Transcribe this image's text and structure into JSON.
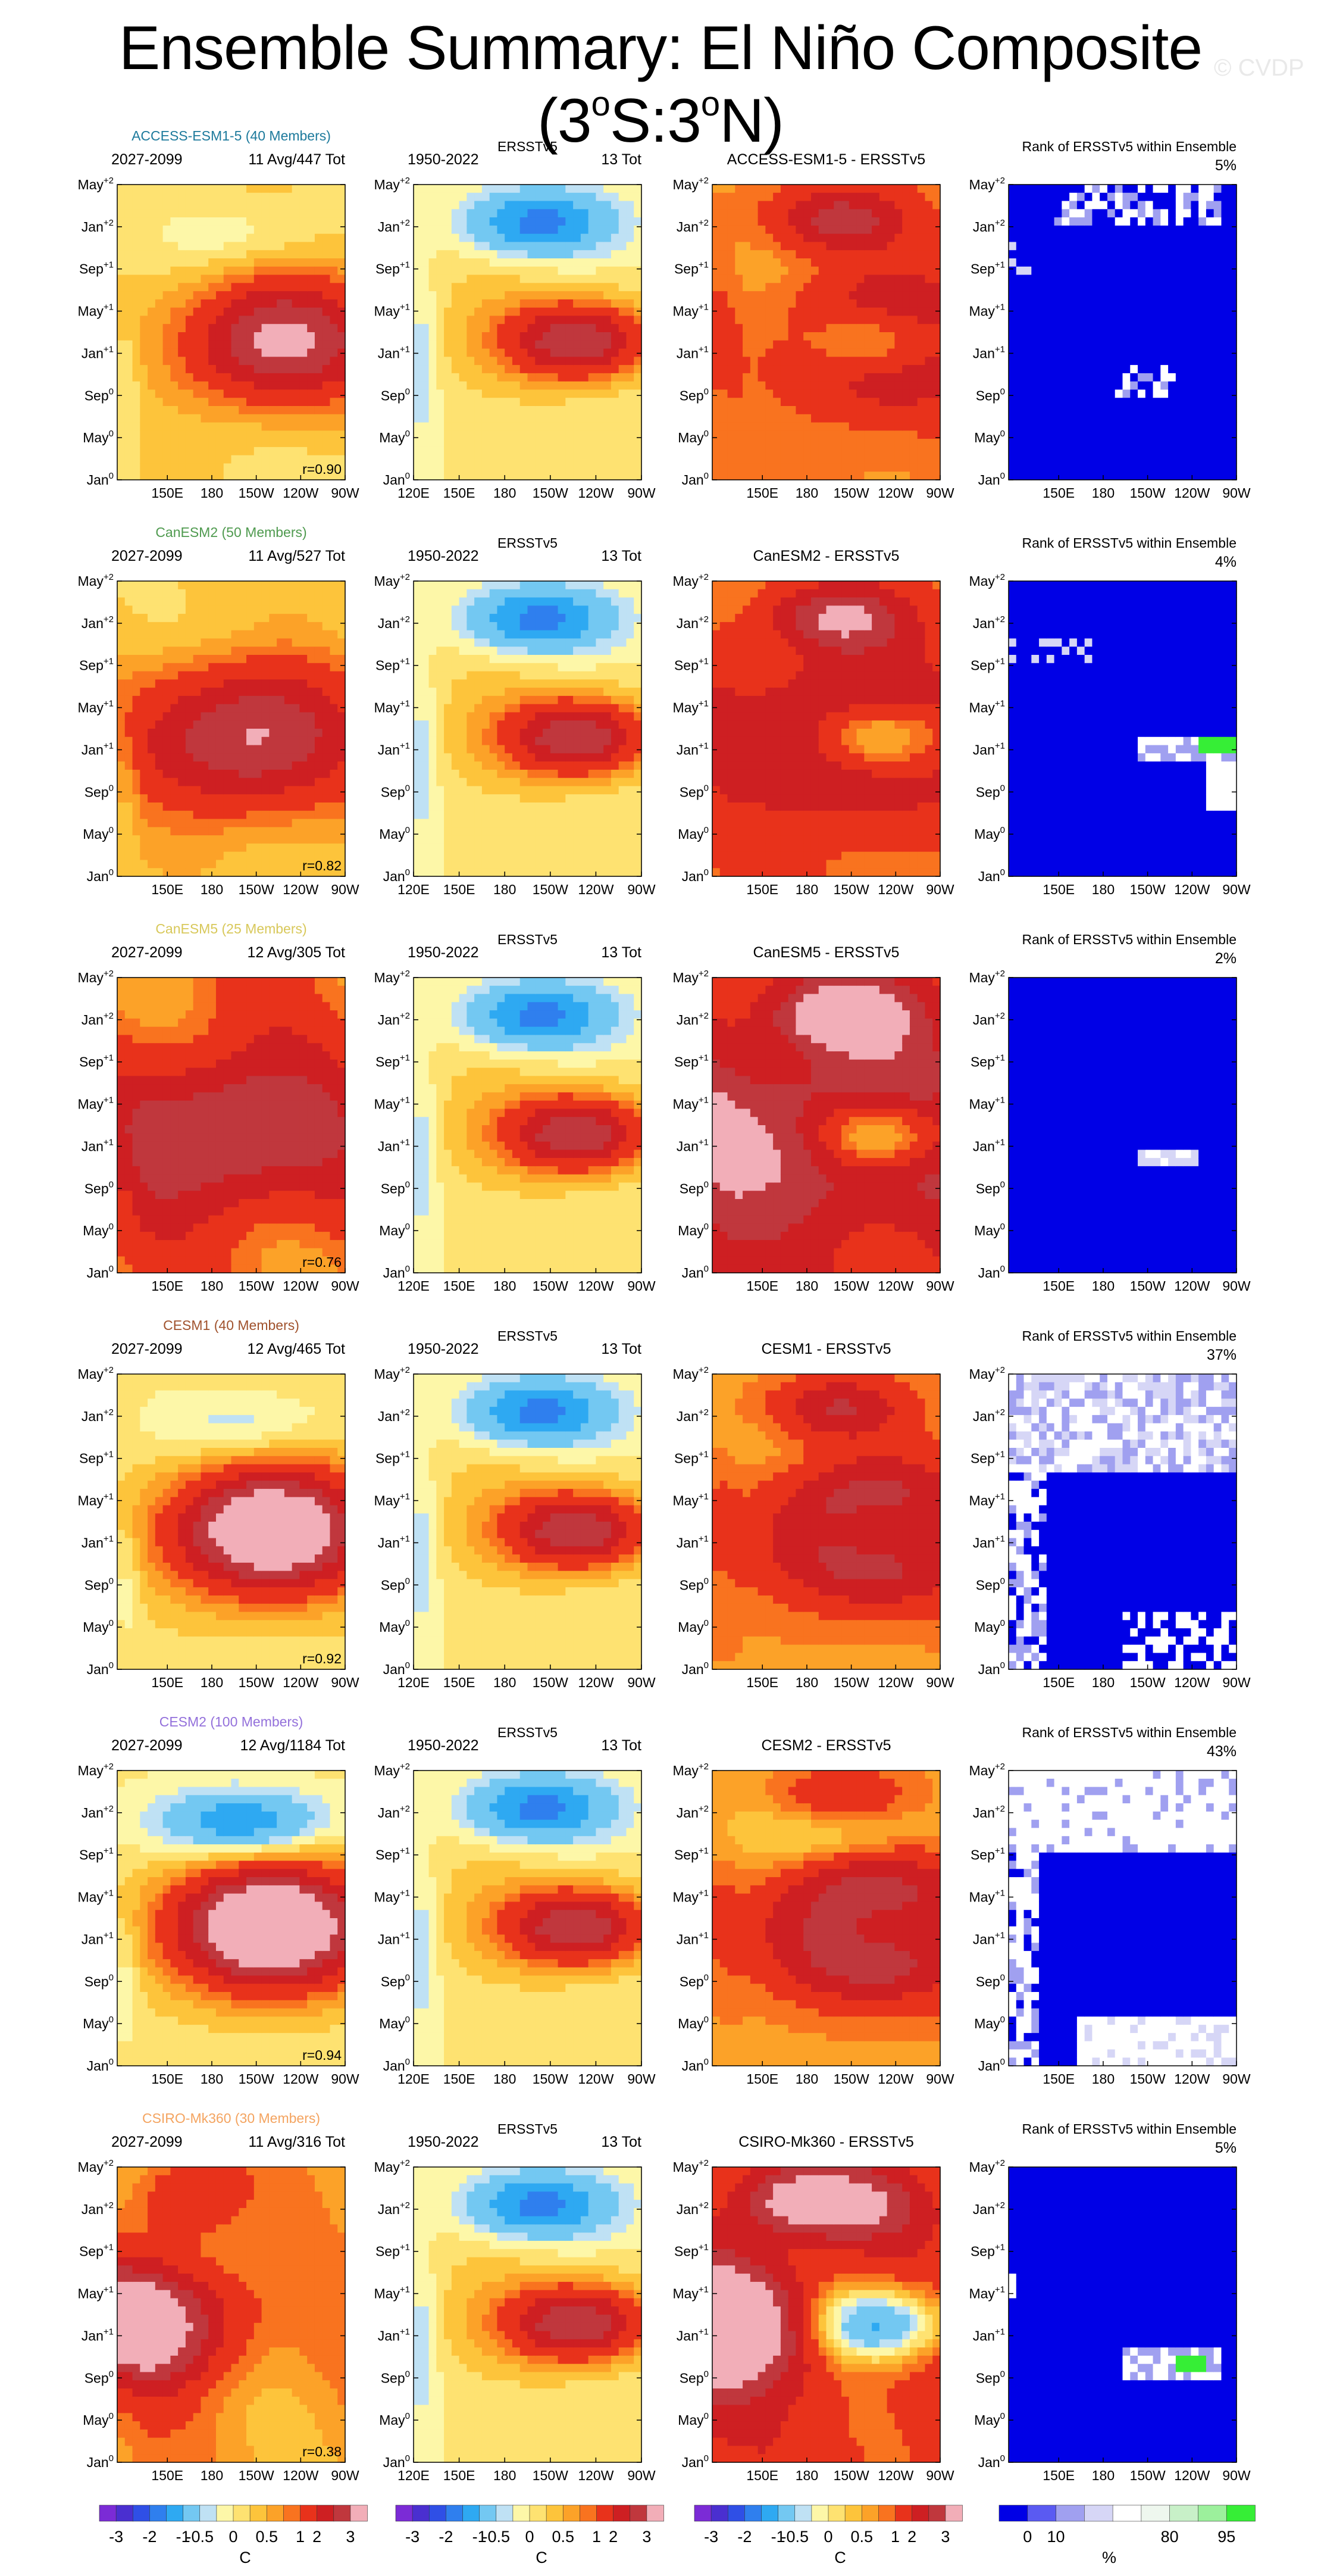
{
  "title": {
    "main": "Ensemble Summary: El Niño Composite (3",
    "sup1": "o",
    "mid": "S:3",
    "sup2": "o",
    "end": "N)"
  },
  "watermark": "© CVDP",
  "colors": {
    "sst_levels": [
      "#7b2bd6",
      "#4a2fd0",
      "#2f4fe6",
      "#2f7fee",
      "#2ea9f2",
      "#73c8f2",
      "#bfe1f4",
      "#fdf7a8",
      "#fee271",
      "#fdc43b",
      "#fca228",
      "#f9731f",
      "#e8321b",
      "#ce1f22",
      "#c0373d",
      "#f2aeb8"
    ],
    "rank_levels": [
      "#0000e6",
      "#5a5af2",
      "#a0a0f0",
      "#d6d6f6",
      "#ffffff",
      "#eef7ee",
      "#c8f0c8",
      "#9cf09c",
      "#36ee36"
    ]
  },
  "rows": [
    {
      "model": "ACCESS-ESM1-5 (40 Members)",
      "model_color": "#1d7a9c",
      "period": "2027-2099",
      "count": "11 Avg/447 Tot",
      "corr": "r=0.90",
      "diff_title": "ACCESS-ESM1-5 - ERSSTv5",
      "rank": "5%",
      "amp": 1.15,
      "shift": 0.1,
      "stretch": 1.0,
      "lanina": 0.25,
      "offset": 0.3,
      "rank_pattern": "few"
    },
    {
      "model": "CanESM2 (50 Members)",
      "model_color": "#4f9a4f",
      "period": "2027-2099",
      "count": "11 Avg/527 Tot",
      "corr": "r=0.82",
      "diff_title": "CanESM2 - ERSSTv5",
      "rank": "4%",
      "amp": 1.05,
      "shift": -0.05,
      "stretch": 1.2,
      "lanina": 0.1,
      "offset": 0.45,
      "rank_pattern": "few2"
    },
    {
      "model": "CanESM5 (25 Members)",
      "model_color": "#d8c85a",
      "period": "2027-2099",
      "count": "12 Avg/305 Tot",
      "corr": "r=0.76",
      "diff_title": "CanESM5 - ERSSTv5",
      "rank": "2%",
      "amp": 0.9,
      "shift": -0.15,
      "stretch": 1.3,
      "lanina": 0.0,
      "offset": 1.2,
      "rank_pattern": "none"
    },
    {
      "model": "CESM1 (40 Members)",
      "model_color": "#a0522d",
      "period": "2027-2099",
      "count": "12 Avg/465 Tot",
      "corr": "r=0.92",
      "diff_title": "CESM1 - ERSSTv5",
      "rank": "37%",
      "amp": 1.6,
      "shift": 0.05,
      "stretch": 1.0,
      "lanina": 0.35,
      "offset": 0.15,
      "rank_pattern": "mixed"
    },
    {
      "model": "CESM2 (100 Members)",
      "model_color": "#9370db",
      "period": "2027-2099",
      "count": "12 Avg/1184 Tot",
      "corr": "r=0.94",
      "diff_title": "CESM2 - ERSSTv5",
      "rank": "43%",
      "amp": 1.7,
      "shift": 0.05,
      "stretch": 1.0,
      "lanina": 1.0,
      "offset": 0.1,
      "rank_pattern": "mixed2"
    },
    {
      "model": "CSIRO-Mk360 (30 Members)",
      "model_color": "#f4a460",
      "period": "2027-2099",
      "count": "11 Avg/316 Tot",
      "corr": "r=0.38",
      "diff_title": "CSIRO-Mk360 - ERSSTv5",
      "rank": "5%",
      "amp": 1.3,
      "shift": -0.55,
      "stretch": 1.0,
      "lanina": 0.0,
      "offset": 0.9,
      "rank_pattern": "few3"
    }
  ],
  "obs": {
    "title": "ERSSTv5",
    "period": "1950-2022",
    "count": "13 Tot"
  },
  "rank_title": "Rank of ERSSTv5 within Ensemble",
  "y_ticks": [
    {
      "base": "May",
      "sup": "+2"
    },
    {
      "base": "Jan",
      "sup": "+2"
    },
    {
      "base": "Sep",
      "sup": "+1"
    },
    {
      "base": "May",
      "sup": "+1"
    },
    {
      "base": "Jan",
      "sup": "+1"
    },
    {
      "base": "Sep",
      "sup": "0"
    },
    {
      "base": "May",
      "sup": "0"
    },
    {
      "base": "Jan",
      "sup": "0"
    }
  ],
  "x_ticks_model": [
    "150E",
    "180",
    "150W",
    "120W",
    "90W"
  ],
  "x_ticks_obs": [
    "120E",
    "150E",
    "180",
    "150W",
    "120W",
    "90W"
  ],
  "colorbar": {
    "ticks": [
      "-3",
      "-2",
      "-1",
      "-0.5",
      "0",
      "0.5",
      "1",
      "2",
      "3"
    ],
    "unit": "C"
  },
  "rank_colorbar": {
    "ticks": [
      "0",
      "10",
      "80",
      "95"
    ],
    "unit": "%"
  },
  "chart_data": {
    "type": "heatmap",
    "title": "Ensemble Summary: El Niño Composite (3oS:3oN)",
    "xlabel": "",
    "ylabel": "",
    "x_ticks": [
      "120E",
      "150E",
      "180",
      "150W",
      "120W",
      "90W"
    ],
    "y_ticks": [
      "Jan0",
      "May0",
      "Sep0",
      "Jan+1",
      "May+1",
      "Sep+1",
      "Jan+2",
      "May+2"
    ],
    "series": [
      {
        "name": "ACCESS-ESM1-5 (40 Members)",
        "period": "2027-2099",
        "r": 0.9,
        "rank_pct": 5
      },
      {
        "name": "CanESM2 (50 Members)",
        "period": "2027-2099",
        "r": 0.82,
        "rank_pct": 4
      },
      {
        "name": "CanESM5 (25 Members)",
        "period": "2027-2099",
        "r": 0.76,
        "rank_pct": 2
      },
      {
        "name": "CESM1 (40 Members)",
        "period": "2027-2099",
        "r": 0.92,
        "rank_pct": 37
      },
      {
        "name": "CESM2 (100 Members)",
        "period": "2027-2099",
        "r": 0.94,
        "rank_pct": 43
      },
      {
        "name": "CSIRO-Mk360 (30 Members)",
        "period": "2027-2099",
        "r": 0.38,
        "rank_pct": 5
      }
    ],
    "contour_levels": [
      -3,
      -2.5,
      -2,
      -1.5,
      -1,
      -0.5,
      -0.25,
      0,
      0.25,
      0.5,
      0.75,
      1,
      1.5,
      2,
      2.5,
      3
    ],
    "rank_levels": [
      0,
      5,
      10,
      20,
      50,
      80,
      90,
      95,
      100
    ]
  }
}
